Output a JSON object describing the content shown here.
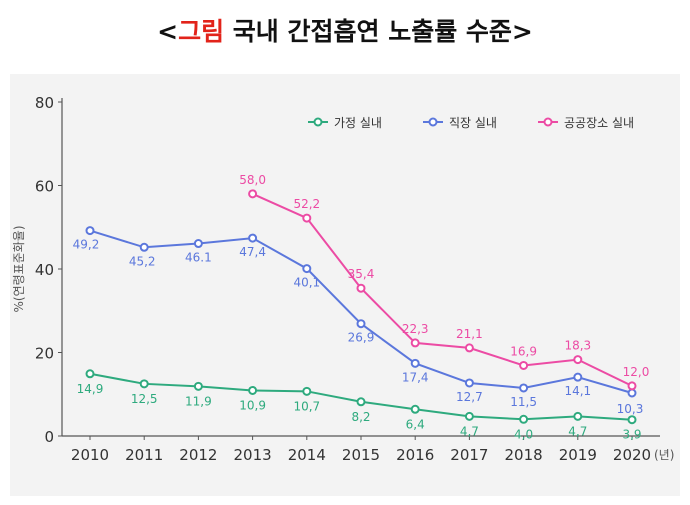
{
  "title": {
    "open": "<",
    "highlight": "그림",
    "rest": " 국내 간접흡연 노출률 수준",
    "close": ">"
  },
  "colors": {
    "highlight": "#e2231a",
    "home": "#2eaa7e",
    "work": "#5b77dc",
    "public": "#ec4ba4",
    "axis": "#555555",
    "grid": "#d6d6d6"
  },
  "chart_data": {
    "type": "line",
    "title": "<그림 국내 간접흡연 노출률 수준>",
    "ylabel": "%(연령표준화율)",
    "xlabel": "",
    "x_unit": "(년)",
    "ylim": [
      0,
      80
    ],
    "yticks": [
      0,
      20,
      40,
      60,
      80
    ],
    "categories": [
      "2010",
      "2011",
      "2012",
      "2013",
      "2014",
      "2015",
      "2016",
      "2017",
      "2018",
      "2019",
      "2020"
    ],
    "legend_position": "top-right",
    "series": [
      {
        "name": "가정 실내",
        "key": "home",
        "values": [
          14.9,
          12.5,
          11.9,
          10.9,
          10.7,
          8.2,
          6.4,
          4.7,
          4.0,
          4.7,
          3.9
        ],
        "labels": [
          "14,9",
          "12,5",
          "11,9",
          "10,9",
          "10,7",
          "8,2",
          "6,4",
          "4,7",
          "4,0",
          "4,7",
          "3,9"
        ]
      },
      {
        "name": "직장 실내",
        "key": "work",
        "values": [
          49.2,
          45.2,
          46.1,
          47.4,
          40.1,
          26.9,
          17.4,
          12.7,
          11.5,
          14.1,
          10.3
        ],
        "labels": [
          "49,2",
          "45,2",
          "46.1",
          "47,4",
          "40,1",
          "26,9",
          "17,4",
          "12,7",
          "11,5",
          "14,1",
          "10,3"
        ]
      },
      {
        "name": "공공장소 실내",
        "key": "public",
        "values": [
          null,
          null,
          null,
          58.0,
          52.2,
          35.4,
          22.3,
          21.1,
          16.9,
          18.3,
          12.0
        ],
        "labels": [
          null,
          null,
          null,
          "58,0",
          "52,2",
          "35,4",
          "22,3",
          "21,1",
          "16,9",
          "18,3",
          "12,0"
        ]
      }
    ]
  }
}
